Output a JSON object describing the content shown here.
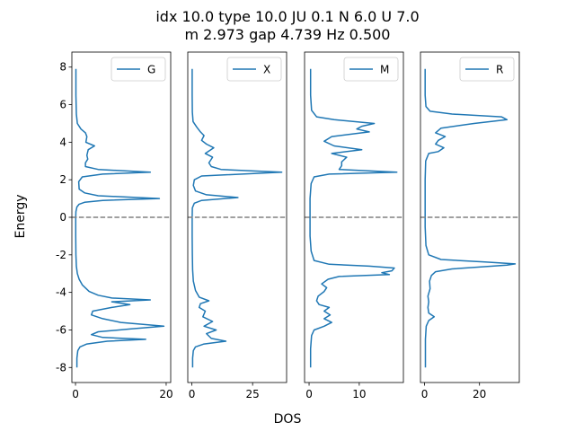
{
  "figure": {
    "title_line1": "idx 10.0 type 10.0 JU 0.1 N 6.0 U 7.0",
    "title_line2": "m 2.973 gap 4.739 Hz 0.500",
    "xlabel": "DOS",
    "ylabel": "Energy",
    "line_color": "#1f77b4",
    "fermi_line_color": "#808080"
  },
  "chart_data": [
    {
      "type": "line",
      "series": [
        {
          "name": "G"
        }
      ],
      "legend": "top-right",
      "xlim": [
        -0.8,
        21
      ],
      "ylim": [
        -8.8,
        8.8
      ],
      "xticks": [
        0,
        20
      ],
      "yticks": [
        -8,
        -6,
        -4,
        -2,
        0,
        2,
        4,
        6,
        8
      ],
      "reference_line_y": 0,
      "points": [
        [
          0.3,
          -8.0
        ],
        [
          0.3,
          -7.5
        ],
        [
          0.5,
          -7.1
        ],
        [
          1.0,
          -6.9
        ],
        [
          2.5,
          -6.75
        ],
        [
          7.0,
          -6.6
        ],
        [
          15.5,
          -6.5
        ],
        [
          6.0,
          -6.4
        ],
        [
          3.5,
          -6.25
        ],
        [
          5.0,
          -6.1
        ],
        [
          12.0,
          -5.95
        ],
        [
          19.5,
          -5.8
        ],
        [
          10.0,
          -5.6
        ],
        [
          6.0,
          -5.4
        ],
        [
          3.5,
          -5.2
        ],
        [
          3.8,
          -5.0
        ],
        [
          8.0,
          -4.8
        ],
        [
          12.0,
          -4.65
        ],
        [
          8.0,
          -4.5
        ],
        [
          16.5,
          -4.4
        ],
        [
          8.0,
          -4.3
        ],
        [
          5.0,
          -4.15
        ],
        [
          3.0,
          -3.95
        ],
        [
          1.5,
          -3.6
        ],
        [
          0.8,
          -3.3
        ],
        [
          0.4,
          -3.0
        ],
        [
          0.2,
          -2.6
        ],
        [
          0.1,
          -2.0
        ],
        [
          0.05,
          -1.0
        ],
        [
          0.05,
          0.0
        ],
        [
          0.1,
          0.3
        ],
        [
          0.3,
          0.55
        ],
        [
          0.8,
          0.7
        ],
        [
          2.0,
          0.8
        ],
        [
          6.0,
          0.9
        ],
        [
          18.5,
          1.0
        ],
        [
          5.0,
          1.15
        ],
        [
          2.0,
          1.3
        ],
        [
          0.8,
          1.5
        ],
        [
          0.7,
          1.9
        ],
        [
          1.5,
          2.15
        ],
        [
          6.0,
          2.3
        ],
        [
          16.5,
          2.4
        ],
        [
          5.0,
          2.55
        ],
        [
          2.2,
          2.7
        ],
        [
          2.2,
          2.9
        ],
        [
          2.7,
          3.1
        ],
        [
          2.5,
          3.3
        ],
        [
          2.8,
          3.6
        ],
        [
          4.2,
          3.8
        ],
        [
          2.3,
          4.0
        ],
        [
          2.5,
          4.3
        ],
        [
          2.2,
          4.5
        ],
        [
          1.2,
          4.7
        ],
        [
          0.4,
          5.0
        ],
        [
          0.2,
          5.5
        ],
        [
          0.1,
          6.5
        ],
        [
          0.1,
          7.9
        ]
      ]
    },
    {
      "type": "line",
      "series": [
        {
          "name": "X"
        }
      ],
      "legend": "top-right",
      "xlim": [
        -1.7,
        39
      ],
      "ylim": [
        -8.8,
        8.8
      ],
      "xticks": [
        0,
        25
      ],
      "yticks": [],
      "reference_line_y": 0,
      "points": [
        [
          0.3,
          -8.0
        ],
        [
          0.3,
          -7.5
        ],
        [
          0.6,
          -7.1
        ],
        [
          1.5,
          -6.9
        ],
        [
          5.0,
          -6.75
        ],
        [
          14.0,
          -6.6
        ],
        [
          8.0,
          -6.45
        ],
        [
          6.0,
          -6.2
        ],
        [
          10.0,
          -6.0
        ],
        [
          5.0,
          -5.8
        ],
        [
          8.5,
          -5.55
        ],
        [
          4.5,
          -5.3
        ],
        [
          5.5,
          -5.0
        ],
        [
          3.0,
          -4.8
        ],
        [
          3.5,
          -4.6
        ],
        [
          7.0,
          -4.45
        ],
        [
          3.0,
          -4.25
        ],
        [
          1.5,
          -3.9
        ],
        [
          0.6,
          -3.4
        ],
        [
          0.3,
          -2.8
        ],
        [
          0.2,
          -2.0
        ],
        [
          0.1,
          -1.0
        ],
        [
          0.1,
          0.0
        ],
        [
          0.2,
          0.5
        ],
        [
          1.0,
          0.75
        ],
        [
          4.0,
          0.9
        ],
        [
          19.0,
          1.05
        ],
        [
          6.0,
          1.2
        ],
        [
          1.5,
          1.4
        ],
        [
          0.6,
          1.7
        ],
        [
          1.0,
          2.0
        ],
        [
          4.0,
          2.2
        ],
        [
          37.0,
          2.4
        ],
        [
          12.0,
          2.55
        ],
        [
          8.0,
          2.7
        ],
        [
          7.0,
          2.9
        ],
        [
          8.5,
          3.2
        ],
        [
          5.5,
          3.4
        ],
        [
          9.0,
          3.7
        ],
        [
          6.0,
          3.9
        ],
        [
          4.0,
          4.1
        ],
        [
          5.0,
          4.35
        ],
        [
          3.5,
          4.55
        ],
        [
          2.0,
          4.8
        ],
        [
          0.5,
          5.1
        ],
        [
          0.2,
          5.6
        ],
        [
          0.1,
          6.5
        ],
        [
          0.1,
          7.9
        ]
      ]
    },
    {
      "type": "line",
      "series": [
        {
          "name": "M"
        }
      ],
      "legend": "top-right",
      "xlim": [
        -0.9,
        18.8
      ],
      "ylim": [
        -8.8,
        8.8
      ],
      "xticks": [
        0,
        10
      ],
      "yticks": [],
      "reference_line_y": 0,
      "points": [
        [
          0.3,
          -8.0
        ],
        [
          0.3,
          -7.0
        ],
        [
          0.5,
          -6.3
        ],
        [
          1.0,
          -6.0
        ],
        [
          3.0,
          -5.8
        ],
        [
          4.5,
          -5.6
        ],
        [
          3.0,
          -5.4
        ],
        [
          4.2,
          -5.2
        ],
        [
          3.0,
          -5.0
        ],
        [
          4.0,
          -4.8
        ],
        [
          2.0,
          -4.65
        ],
        [
          1.5,
          -4.45
        ],
        [
          1.8,
          -4.2
        ],
        [
          3.0,
          -3.95
        ],
        [
          3.5,
          -3.75
        ],
        [
          2.5,
          -3.55
        ],
        [
          3.8,
          -3.3
        ],
        [
          6.0,
          -3.15
        ],
        [
          16.0,
          -3.05
        ],
        [
          14.5,
          -2.95
        ],
        [
          16.5,
          -2.85
        ],
        [
          17.0,
          -2.7
        ],
        [
          12.0,
          -2.6
        ],
        [
          4.0,
          -2.5
        ],
        [
          1.0,
          -2.3
        ],
        [
          0.4,
          -1.8
        ],
        [
          0.2,
          -1.0
        ],
        [
          0.2,
          0.0
        ],
        [
          0.2,
          1.0
        ],
        [
          0.4,
          1.8
        ],
        [
          1.0,
          2.15
        ],
        [
          4.0,
          2.3
        ],
        [
          17.5,
          2.4
        ],
        [
          6.0,
          2.55
        ],
        [
          6.5,
          2.75
        ],
        [
          6.5,
          2.95
        ],
        [
          7.5,
          3.2
        ],
        [
          4.5,
          3.4
        ],
        [
          10.5,
          3.6
        ],
        [
          5.0,
          3.8
        ],
        [
          3.0,
          4.05
        ],
        [
          4.5,
          4.3
        ],
        [
          12.0,
          4.55
        ],
        [
          9.5,
          4.7
        ],
        [
          10.5,
          4.85
        ],
        [
          13.0,
          5.0
        ],
        [
          5.0,
          5.2
        ],
        [
          1.5,
          5.35
        ],
        [
          0.5,
          5.7
        ],
        [
          0.3,
          6.5
        ],
        [
          0.3,
          7.9
        ]
      ]
    },
    {
      "type": "line",
      "series": [
        {
          "name": "R"
        }
      ],
      "legend": "top-right",
      "xlim": [
        -1.5,
        34.5
      ],
      "ylim": [
        -8.8,
        8.8
      ],
      "xticks": [
        0,
        20
      ],
      "yticks": [],
      "reference_line_y": 0,
      "points": [
        [
          0.3,
          -8.0
        ],
        [
          0.3,
          -6.5
        ],
        [
          0.6,
          -5.8
        ],
        [
          1.5,
          -5.5
        ],
        [
          3.5,
          -5.3
        ],
        [
          1.5,
          -5.1
        ],
        [
          1.2,
          -4.8
        ],
        [
          1.5,
          -4.5
        ],
        [
          1.2,
          -4.2
        ],
        [
          2.0,
          -3.8
        ],
        [
          1.8,
          -3.4
        ],
        [
          2.5,
          -3.1
        ],
        [
          4.0,
          -2.9
        ],
        [
          10.0,
          -2.75
        ],
        [
          20.0,
          -2.65
        ],
        [
          30.0,
          -2.55
        ],
        [
          33.0,
          -2.48
        ],
        [
          22.0,
          -2.38
        ],
        [
          6.0,
          -2.25
        ],
        [
          1.5,
          -2.0
        ],
        [
          0.5,
          -1.5
        ],
        [
          0.2,
          -0.5
        ],
        [
          0.2,
          0.5
        ],
        [
          0.2,
          2.0
        ],
        [
          0.4,
          3.0
        ],
        [
          1.5,
          3.4
        ],
        [
          5.0,
          3.5
        ],
        [
          7.0,
          3.7
        ],
        [
          4.0,
          3.9
        ],
        [
          5.0,
          4.1
        ],
        [
          7.5,
          4.3
        ],
        [
          4.0,
          4.5
        ],
        [
          6.0,
          4.75
        ],
        [
          18.0,
          5.0
        ],
        [
          30.0,
          5.2
        ],
        [
          28.0,
          5.35
        ],
        [
          10.0,
          5.5
        ],
        [
          2.0,
          5.65
        ],
        [
          0.5,
          5.9
        ],
        [
          0.2,
          6.5
        ],
        [
          0.2,
          7.9
        ]
      ]
    }
  ]
}
